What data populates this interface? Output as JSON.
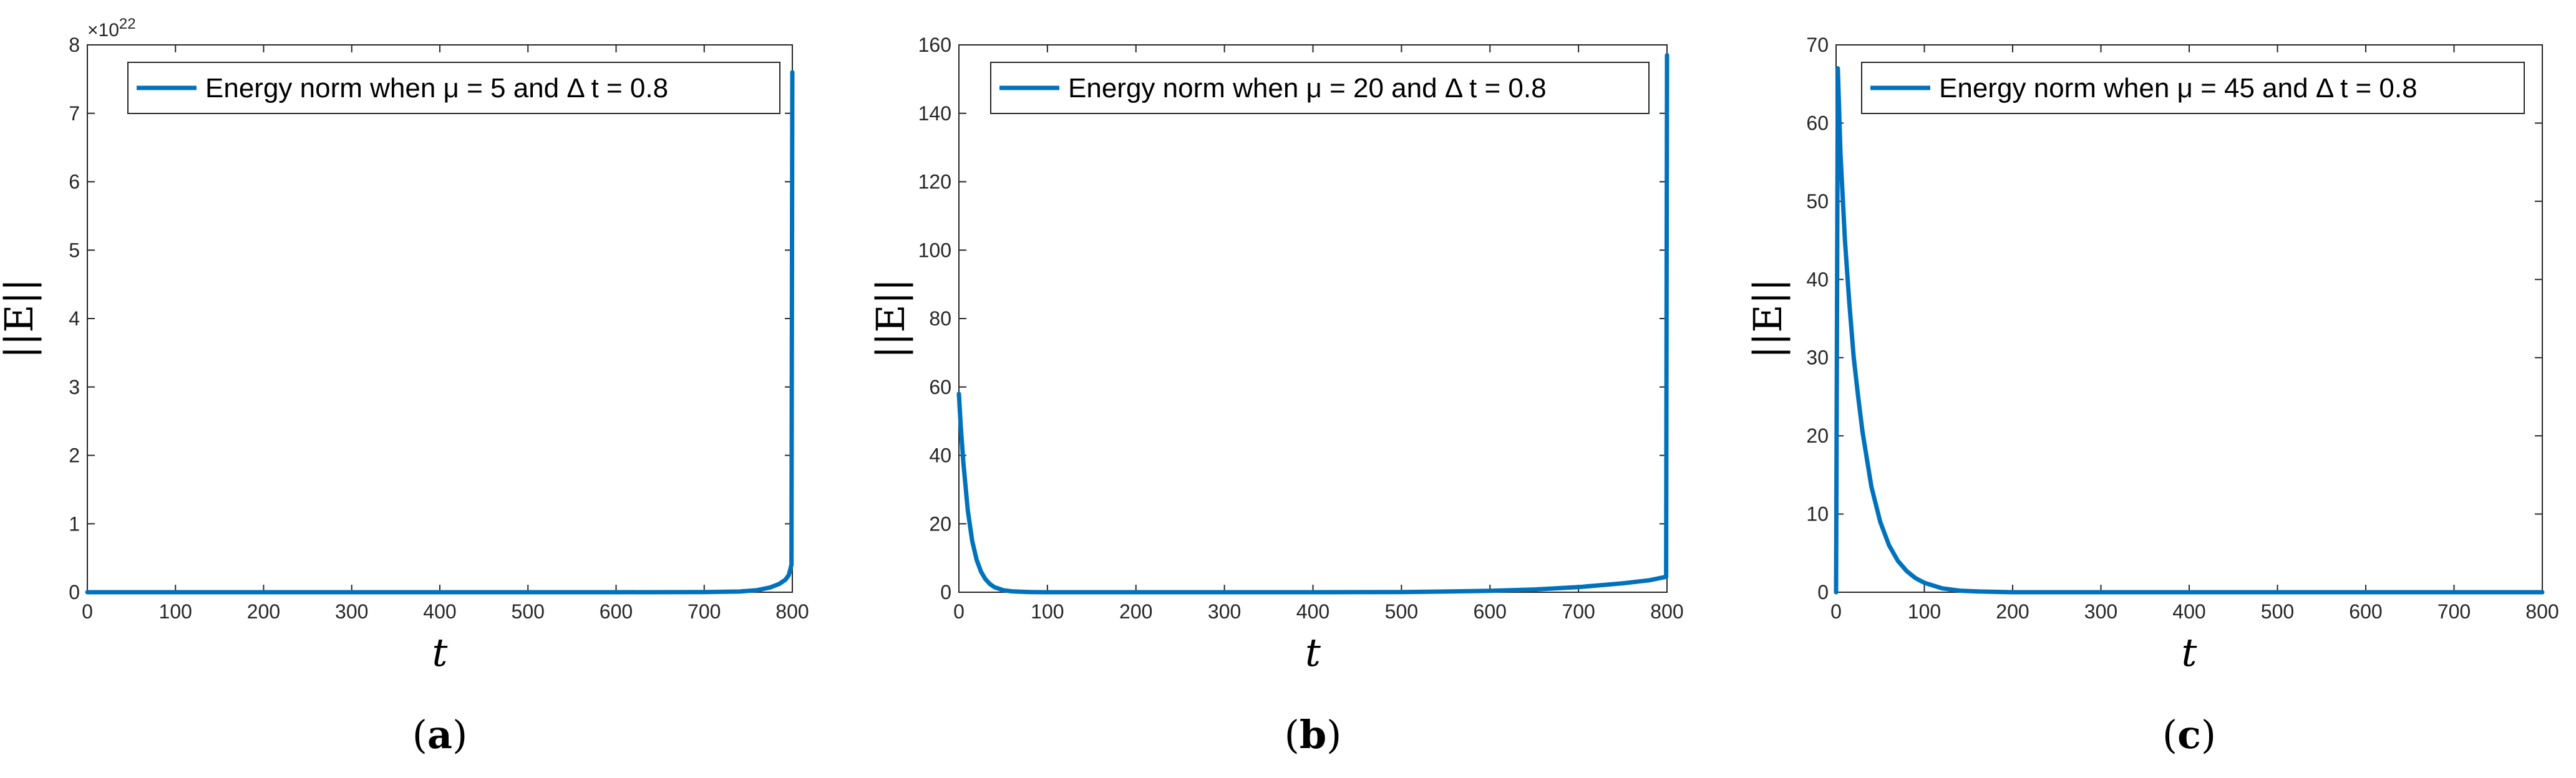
{
  "chart_data": [
    {
      "type": "line",
      "panel_label": "a",
      "xlabel": "t",
      "ylabel": "||E||",
      "xlim": [
        0,
        800
      ],
      "ylim": [
        0,
        8
      ],
      "y_exponent": "22",
      "x_ticks": [
        0,
        100,
        200,
        300,
        400,
        500,
        600,
        700,
        800
      ],
      "y_ticks": [
        0,
        1,
        2,
        3,
        4,
        5,
        6,
        7,
        8
      ],
      "grid": false,
      "legend_placement": "top-right",
      "series": [
        {
          "name": "Energy norm when  μ =   5 and  Δ t =  0.8",
          "color": "#0072BD",
          "x": [
            0,
            100,
            200,
            300,
            400,
            500,
            600,
            700,
            740,
            760,
            775,
            785,
            792,
            796,
            799,
            800
          ],
          "y": [
            0,
            0,
            0,
            0,
            0,
            0,
            0,
            0.003,
            0.01,
            0.03,
            0.07,
            0.12,
            0.18,
            0.25,
            0.4,
            7.6
          ]
        }
      ]
    },
    {
      "type": "line",
      "panel_label": "b",
      "xlabel": "t",
      "ylabel": "||E||",
      "xlim": [
        0,
        800
      ],
      "ylim": [
        0,
        160
      ],
      "x_ticks": [
        0,
        100,
        200,
        300,
        400,
        500,
        600,
        700,
        800
      ],
      "y_ticks": [
        0,
        20,
        40,
        60,
        80,
        100,
        120,
        140,
        160
      ],
      "grid": false,
      "legend_placement": "top-right",
      "series": [
        {
          "name": "Energy norm when  μ =   20 and  Δ t =  0.8",
          "color": "#0072BD",
          "x": [
            0,
            2,
            5,
            10,
            15,
            20,
            25,
            30,
            35,
            40,
            50,
            60,
            80,
            100,
            200,
            300,
            400,
            500,
            550,
            600,
            650,
            700,
            750,
            780,
            799,
            800
          ],
          "y": [
            58,
            49,
            38,
            24,
            15,
            9.5,
            6,
            3.8,
            2.4,
            1.5,
            0.6,
            0.25,
            0.05,
            0,
            0,
            0,
            0,
            0.05,
            0.2,
            0.4,
            0.8,
            1.5,
            2.6,
            3.5,
            4.5,
            157
          ]
        }
      ]
    },
    {
      "type": "line",
      "panel_label": "c",
      "xlabel": "t",
      "ylabel": "||E||",
      "xlim": [
        0,
        800
      ],
      "ylim": [
        0,
        70
      ],
      "x_ticks": [
        0,
        100,
        200,
        300,
        400,
        500,
        600,
        700,
        800
      ],
      "y_ticks": [
        0,
        10,
        20,
        30,
        40,
        50,
        60,
        70
      ],
      "grid": false,
      "legend_placement": "top-right",
      "series": [
        {
          "name": "Energy norm when  μ =   45 and  Δ t =  0.8",
          "color": "#0072BD",
          "x": [
            0,
            2,
            5,
            10,
            15,
            20,
            25,
            30,
            40,
            50,
            60,
            70,
            80,
            90,
            100,
            120,
            140,
            160,
            200,
            300,
            400,
            500,
            600,
            700,
            800
          ],
          "y": [
            0,
            67,
            56,
            45,
            37,
            30,
            25,
            20.5,
            13.5,
            9,
            6,
            4,
            2.7,
            1.8,
            1.2,
            0.5,
            0.2,
            0.1,
            0,
            0,
            0,
            0,
            0,
            0,
            0
          ]
        }
      ]
    }
  ]
}
